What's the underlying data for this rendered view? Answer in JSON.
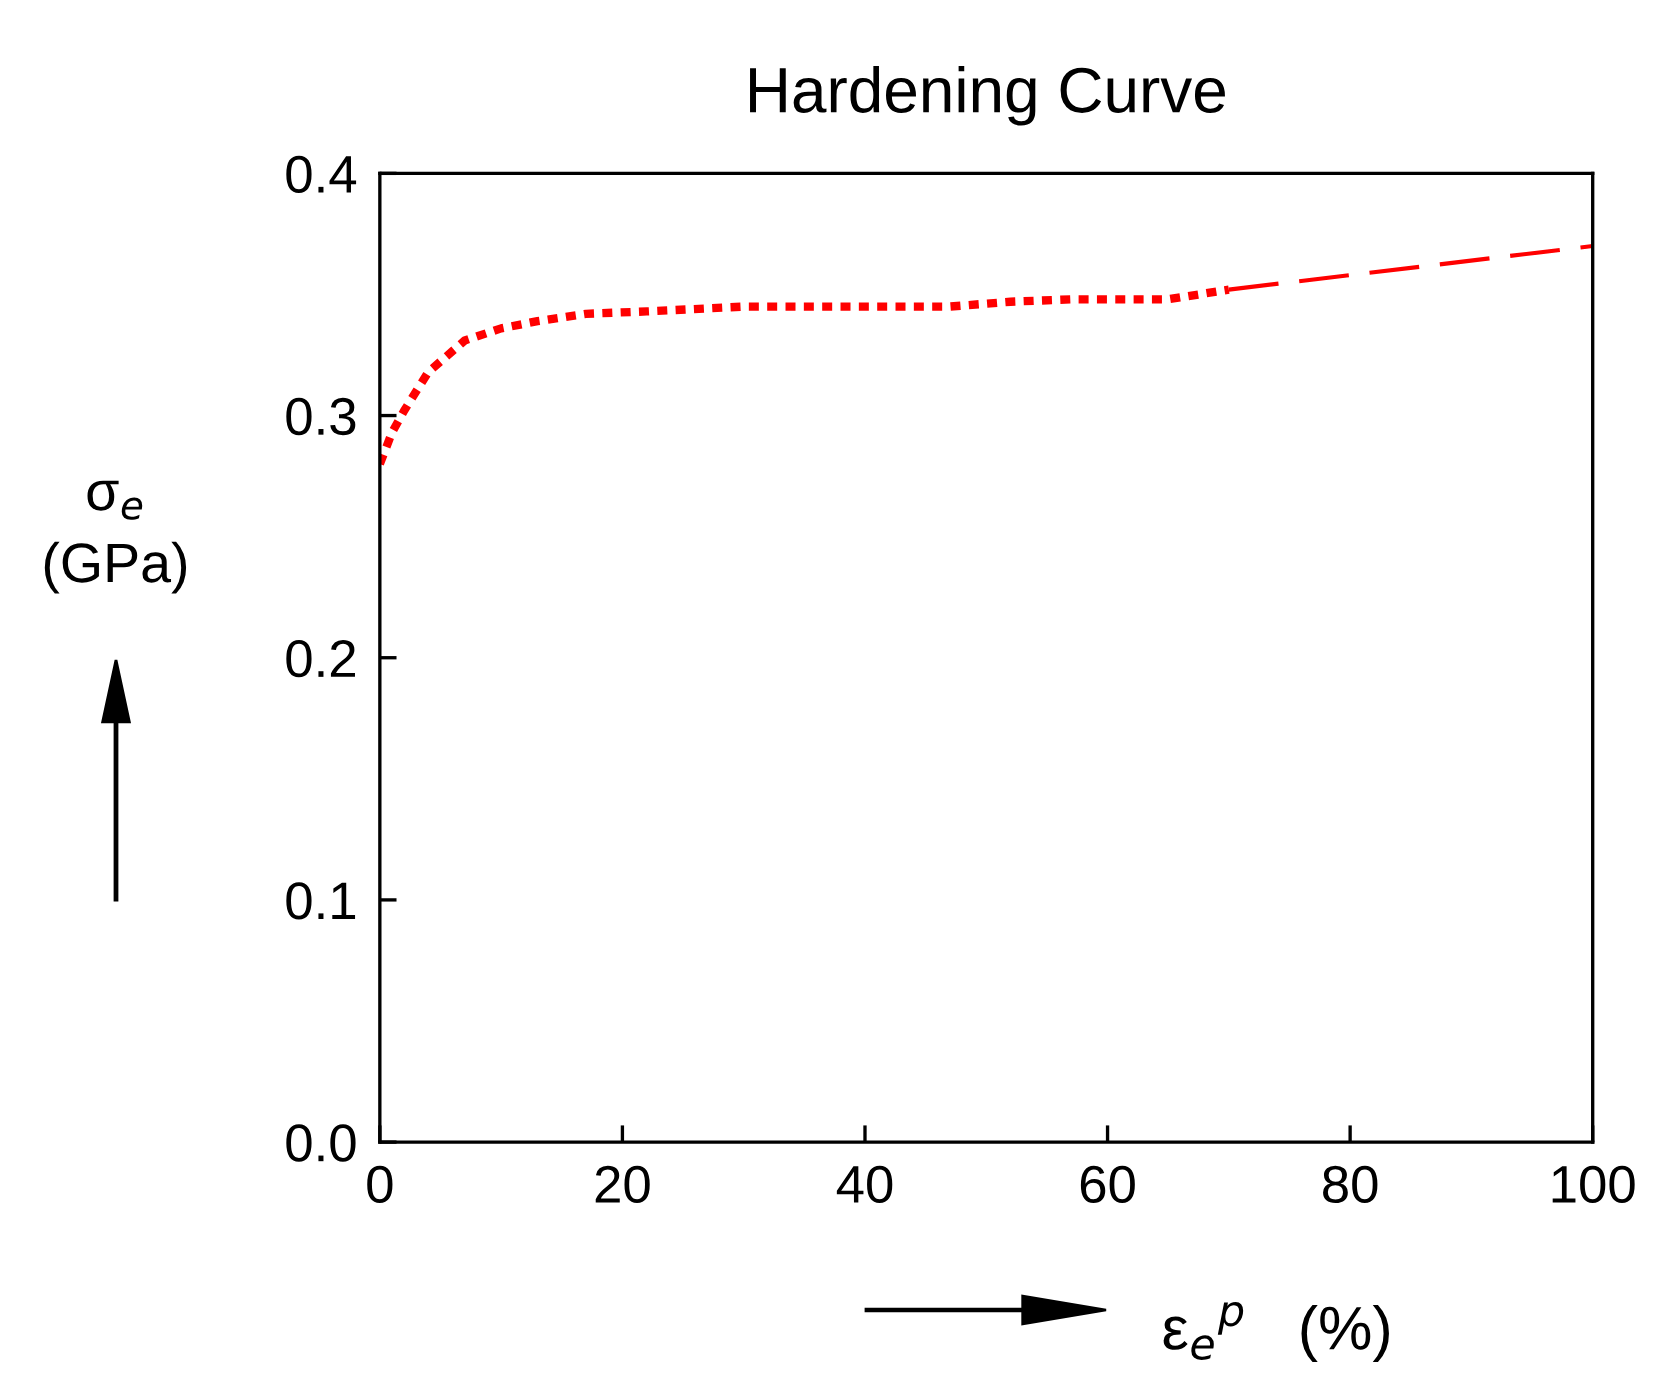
{
  "chart_data": {
    "type": "line",
    "title": "Hardening Curve",
    "xlabel": "ε$_{e}$$^{p}$   (%)",
    "ylabel": "σ$_{e}$\n(GPa)",
    "series": [
      {
        "color": "#ff0000",
        "line_style": "dotted",
        "x": [
          0,
          1,
          2,
          4,
          7,
          10,
          13,
          17,
          22,
          30,
          40,
          47,
          52,
          57,
          65,
          70
        ],
        "values": [
          0.28,
          0.293,
          0.302,
          0.318,
          0.331,
          0.336,
          0.339,
          0.342,
          0.343,
          0.345,
          0.345,
          0.345,
          0.347,
          0.348,
          0.348,
          0.352
        ]
      },
      {
        "color": "#ff0000",
        "line_style": "dashed",
        "x": [
          70,
          100
        ],
        "values": [
          0.352,
          0.37
        ]
      }
    ],
    "xlim": [
      0,
      100
    ],
    "ylim": [
      0,
      0.4
    ],
    "xticks": [
      0,
      20,
      40,
      60,
      80,
      100
    ],
    "yticks": [
      {
        "value": 0,
        "label": "0.0"
      },
      0.1,
      0.2,
      0.3,
      0.4
    ],
    "grid": false,
    "legend": false,
    "marker": "none"
  }
}
